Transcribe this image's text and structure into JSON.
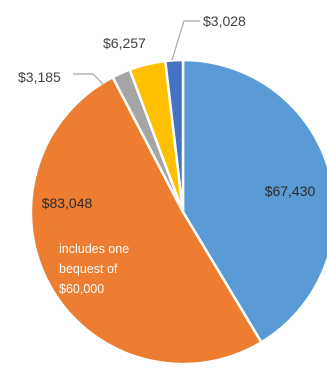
{
  "chart_data": {
    "type": "pie",
    "start_angle_deg": 0,
    "direction": "clockwise",
    "slices": [
      {
        "label": "$67,430",
        "value": 67430,
        "color": "#5b9bd5",
        "label_position": "inside"
      },
      {
        "label": "$83,048",
        "value": 83048,
        "color": "#ed7d31",
        "label_position": "inside",
        "annotation": [
          "includes one",
          "bequest of",
          "$60,000"
        ]
      },
      {
        "label": "$3,185",
        "value": 3185,
        "color": "#a5a5a5",
        "label_position": "outside"
      },
      {
        "label": "$6,257",
        "value": 6257,
        "color": "#ffc000",
        "label_position": "outside"
      },
      {
        "label": "$3,028",
        "value": 3028,
        "color": "#4472c4",
        "label_position": "outside"
      }
    ]
  }
}
